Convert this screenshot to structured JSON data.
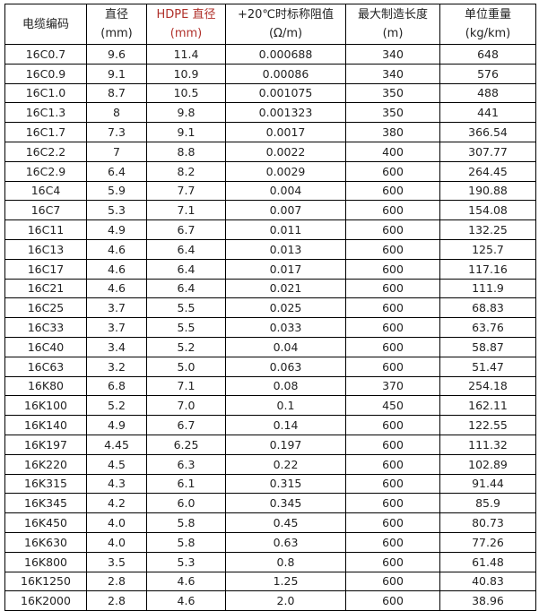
{
  "headers": [
    {
      "l1": "电缆编码",
      "l2": ""
    },
    {
      "l1": "直径",
      "l2": "(mm)"
    },
    {
      "l1": "HDPE 直径",
      "l2": "(mm)"
    },
    {
      "l1": "+20℃时标称阻值",
      "l2": "(Ω/m)"
    },
    {
      "l1": "最大制造长度",
      "l2": "(m)"
    },
    {
      "l1": "单位重量",
      "l2": "(kg/km)"
    }
  ],
  "rows": [
    [
      "16C0.7",
      "9.6",
      "11.4",
      "0.000688",
      "340",
      "648"
    ],
    [
      "16C0.9",
      "9.1",
      "10.9",
      "0.00086",
      "340",
      "576"
    ],
    [
      "16C1.0",
      "8.7",
      "10.5",
      "0.001075",
      "350",
      "488"
    ],
    [
      "16C1.3",
      "8",
      "9.8",
      "0.001323",
      "350",
      "441"
    ],
    [
      "16C1.7",
      "7.3",
      "9.1",
      "0.0017",
      "380",
      "366.54"
    ],
    [
      "16C2.2",
      "7",
      "8.8",
      "0.0022",
      "400",
      "307.77"
    ],
    [
      "16C2.9",
      "6.4",
      "8.2",
      "0.0029",
      "600",
      "264.45"
    ],
    [
      "16C4",
      "5.9",
      "7.7",
      "0.004",
      "600",
      "190.88"
    ],
    [
      "16C7",
      "5.3",
      "7.1",
      "0.007",
      "600",
      "154.08"
    ],
    [
      "16C11",
      "4.9",
      "6.7",
      "0.011",
      "600",
      "132.25"
    ],
    [
      "16C13",
      "4.6",
      "6.4",
      "0.013",
      "600",
      "125.7"
    ],
    [
      "16C17",
      "4.6",
      "6.4",
      "0.017",
      "600",
      "117.16"
    ],
    [
      "16C21",
      "4.6",
      "6.4",
      "0.021",
      "600",
      "111.9"
    ],
    [
      "16C25",
      "3.7",
      "5.5",
      "0.025",
      "600",
      "68.83"
    ],
    [
      "16C33",
      "3.7",
      "5.5",
      "0.033",
      "600",
      "63.76"
    ],
    [
      "16C40",
      "3.4",
      "5.2",
      "0.04",
      "600",
      "58.87"
    ],
    [
      "16C63",
      "3.2",
      "5.0",
      "0.063",
      "600",
      "51.47"
    ],
    [
      "16K80",
      "6.8",
      "7.1",
      "0.08",
      "370",
      "254.18"
    ],
    [
      "16K100",
      "5.2",
      "7.0",
      "0.1",
      "450",
      "162.11"
    ],
    [
      "16K140",
      "4.9",
      "6.7",
      "0.14",
      "600",
      "122.55"
    ],
    [
      "16K197",
      "4.45",
      "6.25",
      "0.197",
      "600",
      "111.32"
    ],
    [
      "16K220",
      "4.5",
      "6.3",
      "0.22",
      "600",
      "102.89"
    ],
    [
      "16K315",
      "4.3",
      "6.1",
      "0.315",
      "600",
      "91.44"
    ],
    [
      "16K345",
      "4.2",
      "6.0",
      "0.345",
      "600",
      "85.9"
    ],
    [
      "16K450",
      "4.0",
      "5.8",
      "0.45",
      "600",
      "80.73"
    ],
    [
      "16K630",
      "4.0",
      "5.8",
      "0.63",
      "600",
      "77.26"
    ],
    [
      "16K800",
      "3.5",
      "5.3",
      "0.8",
      "600",
      "61.48"
    ],
    [
      "16K1250",
      "2.8",
      "4.6",
      "1.25",
      "600",
      "40.83"
    ],
    [
      "16K2000",
      "2.8",
      "4.6",
      "2.0",
      "600",
      "38.96"
    ]
  ]
}
